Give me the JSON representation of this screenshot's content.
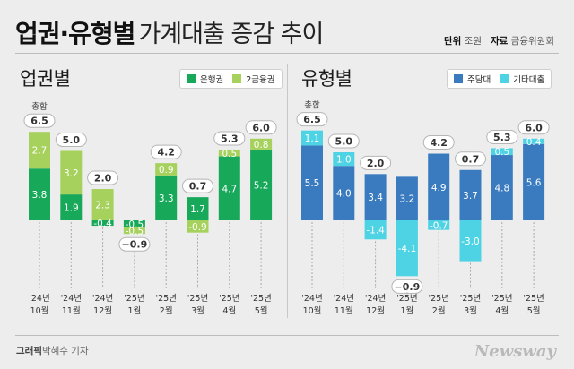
{
  "header": {
    "title_bold": "업권·유형별",
    "title_rest": "가계대출 증감 추이",
    "unit_label": "단위",
    "unit_value": "조원",
    "source_label": "자료",
    "source_value": "금융위원회"
  },
  "footer": {
    "credit_label": "그래픽",
    "credit_name": "박혜수 기자",
    "brand": "Newsway"
  },
  "colors": {
    "bank": "#17a85a",
    "second_finance": "#a6d15c",
    "mortgage": "#3a7bbf",
    "other_loans": "#4dd3e3"
  },
  "chart_data": [
    {
      "type": "bar",
      "stacked": true,
      "title": "업권별",
      "total_label": "총합",
      "categories": [
        [
          "'24년",
          "10월"
        ],
        [
          "'24년",
          "11월"
        ],
        [
          "'24년",
          "12월"
        ],
        [
          "'25년",
          "1월"
        ],
        [
          "'25년",
          "2월"
        ],
        [
          "'25년",
          "3월"
        ],
        [
          "'25년",
          "4월"
        ],
        [
          "'25년",
          "5월"
        ]
      ],
      "totals": [
        6.5,
        5.0,
        2.0,
        -0.9,
        4.2,
        0.7,
        5.3,
        6.0
      ],
      "series": [
        {
          "name": "은행권",
          "values": [
            3.8,
            1.9,
            -0.4,
            -0.5,
            3.3,
            1.7,
            4.7,
            5.2
          ]
        },
        {
          "name": "2금융권",
          "values": [
            2.7,
            3.2,
            2.3,
            -0.5,
            0.9,
            -0.9,
            0.5,
            0.8
          ]
        }
      ],
      "legend": "top-right",
      "grid": false
    },
    {
      "type": "bar",
      "stacked": true,
      "title": "유형별",
      "total_label": "총합",
      "categories": [
        [
          "'24년",
          "10월"
        ],
        [
          "'24년",
          "11월"
        ],
        [
          "'24년",
          "12월"
        ],
        [
          "'25년",
          "1월"
        ],
        [
          "'25년",
          "2월"
        ],
        [
          "'25년",
          "3월"
        ],
        [
          "'25년",
          "4월"
        ],
        [
          "'25년",
          "5월"
        ]
      ],
      "totals": [
        6.5,
        5.0,
        2.0,
        -0.9,
        4.2,
        0.7,
        5.3,
        6.0
      ],
      "series": [
        {
          "name": "주담대",
          "values": [
            5.5,
            4.0,
            3.4,
            3.2,
            4.9,
            3.7,
            4.8,
            5.6
          ]
        },
        {
          "name": "기타대출",
          "values": [
            1.1,
            1.0,
            -1.4,
            -4.1,
            -0.7,
            -3.0,
            0.5,
            0.4
          ]
        }
      ],
      "legend": "top-right",
      "grid": false
    }
  ]
}
